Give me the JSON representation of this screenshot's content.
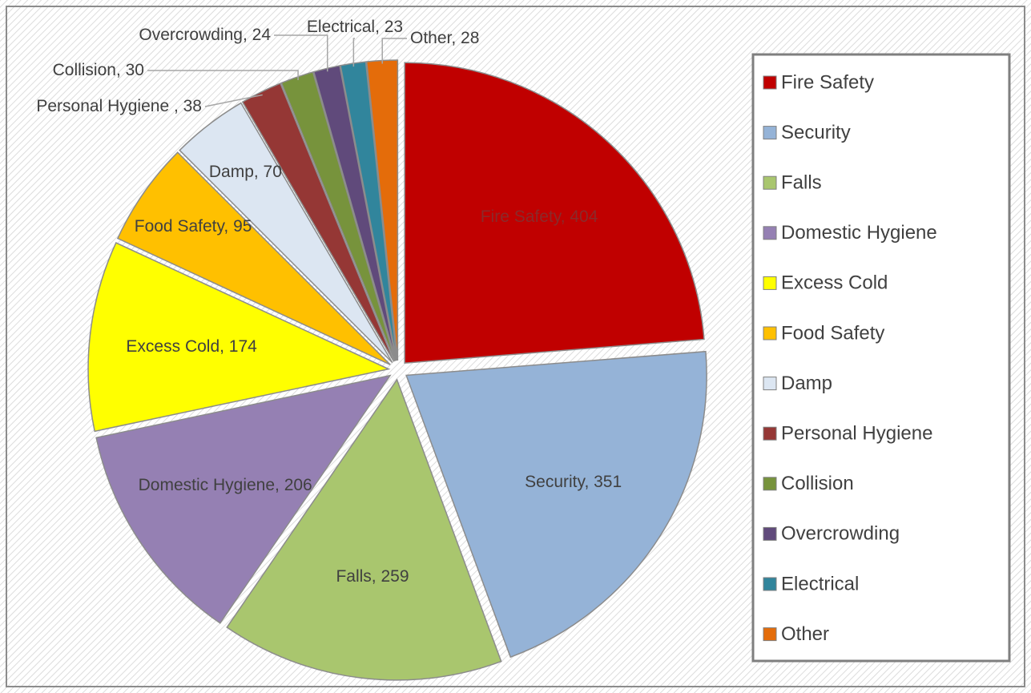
{
  "chart_data": {
    "type": "pie",
    "categories": [
      "Fire Safety",
      "Security",
      "Falls",
      "Domestic Hygiene",
      "Excess Cold",
      "Food Safety",
      "Damp",
      "Personal Hygiene",
      "Collision",
      "Overcrowding",
      "Electrical",
      "Other"
    ],
    "values": [
      404,
      351,
      259,
      206,
      174,
      95,
      70,
      38,
      30,
      24,
      23,
      28
    ],
    "value_labels": [
      "Fire Safety, 404",
      "Security, 351",
      "Falls, 259",
      "Domestic Hygiene, 206",
      "Excess Cold, 174",
      "Food Safety, 95",
      "Damp, 70",
      "Personal Hygiene , 38",
      "Collision, 30",
      "Overcrowding, 24",
      "Electrical, 23",
      "Other, 28"
    ],
    "colors": [
      "#c00000",
      "#95b3d7",
      "#a9c66e",
      "#9580b3",
      "#ffff00",
      "#ffc000",
      "#dce6f2",
      "#953735",
      "#77933c",
      "#604a7b",
      "#31859c",
      "#e46c0a"
    ],
    "legend": "right"
  }
}
